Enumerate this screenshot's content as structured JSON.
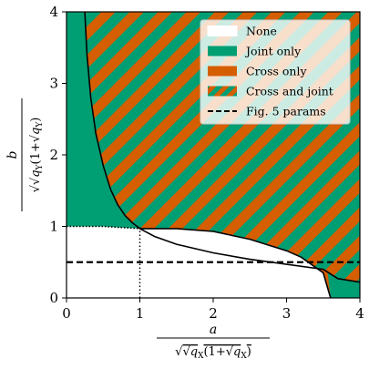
{
  "chart_data": {
    "type": "area",
    "x_range": [
      0,
      4
    ],
    "y_range": [
      0,
      4
    ],
    "x_ticks": [
      "0",
      "1",
      "2",
      "3",
      "4"
    ],
    "y_ticks": [
      "0",
      "1",
      "2",
      "3",
      "4"
    ],
    "x_label": {
      "num": "a",
      "den_inner": "q",
      "den_sub": "X",
      "den_suffix": "(1+",
      "den_close": ")"
    },
    "y_label": {
      "num": "b",
      "den_inner": "q",
      "den_sub": "Y",
      "den_suffix": "(1+",
      "den_close": ")"
    },
    "grid": false,
    "legend_position": "top-right",
    "colors": {
      "joint": "#009E73",
      "cross": "#D55E00",
      "none": "#FFFFFF"
    },
    "legend": [
      {
        "label": "None",
        "style": "none"
      },
      {
        "label": "Joint only",
        "style": "joint"
      },
      {
        "label": "Cross only",
        "style": "cross"
      },
      {
        "label": "Cross and joint",
        "style": "hatch"
      },
      {
        "label": "Fig. 5 params",
        "style": "dashed"
      }
    ],
    "fig5_param_line_y": 0.5,
    "boundaries": {
      "joint_threshold_curve": [
        [
          0.25,
          4.0
        ],
        [
          0.28,
          3.4
        ],
        [
          0.33,
          2.8
        ],
        [
          0.4,
          2.3
        ],
        [
          0.5,
          1.85
        ],
        [
          0.6,
          1.52
        ],
        [
          0.7,
          1.3
        ],
        [
          0.8,
          1.15
        ],
        [
          0.9,
          1.05
        ],
        [
          1.0,
          0.97
        ],
        [
          1.2,
          0.86
        ],
        [
          1.5,
          0.75
        ],
        [
          2.0,
          0.63
        ],
        [
          2.5,
          0.54
        ],
        [
          3.0,
          0.47
        ],
        [
          3.5,
          0.4
        ],
        [
          3.56,
          0.36
        ],
        [
          3.7,
          0.27
        ],
        [
          4.0,
          0.22
        ]
      ],
      "cross_upper_curve": [
        [
          1.0,
          0.97
        ],
        [
          1.5,
          0.97
        ],
        [
          2.0,
          0.93
        ],
        [
          2.5,
          0.82
        ],
        [
          3.0,
          0.66
        ],
        [
          3.2,
          0.57
        ],
        [
          3.5,
          0.35
        ],
        [
          3.6,
          0.0
        ]
      ],
      "none_upper_curve": [
        [
          0.0,
          1.0
        ],
        [
          0.5,
          1.0
        ],
        [
          1.0,
          0.97
        ]
      ]
    },
    "reference_lines": {
      "x_dotted": 1,
      "y_dotted_end": 1
    }
  }
}
